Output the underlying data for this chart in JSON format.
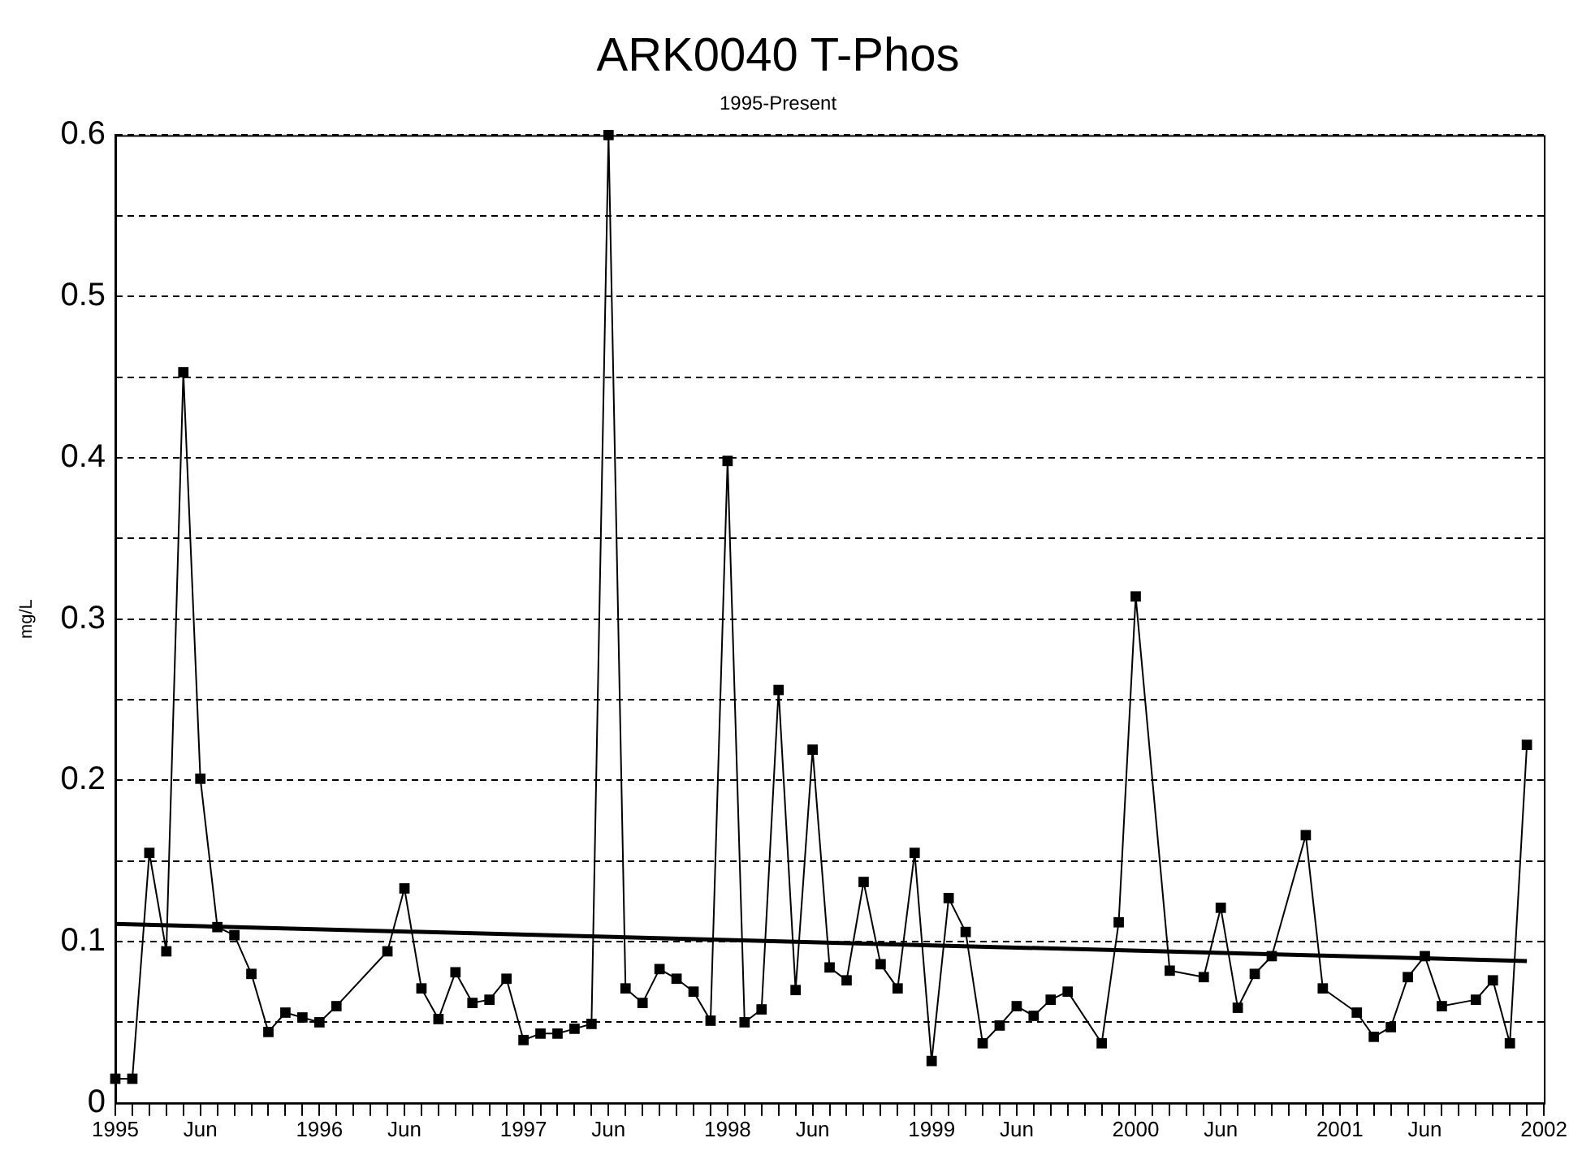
{
  "chart_data": {
    "type": "line",
    "title": "ARK0040 T-Phos",
    "subtitle": "1995-Present",
    "ylabel": "mg/L",
    "xlim": [
      "1995-01",
      "2002-01"
    ],
    "xticks": [
      {
        "value": "1995-01",
        "label": "1995"
      },
      {
        "value": "1995-02",
        "label": null
      },
      {
        "value": "1995-03",
        "label": null
      },
      {
        "value": "1995-04",
        "label": null
      },
      {
        "value": "1995-05",
        "label": null
      },
      {
        "value": "1995-06",
        "label": "Jun"
      },
      {
        "value": "1995-07",
        "label": null
      },
      {
        "value": "1995-08",
        "label": null
      },
      {
        "value": "1995-09",
        "label": null
      },
      {
        "value": "1995-10",
        "label": null
      },
      {
        "value": "1995-11",
        "label": null
      },
      {
        "value": "1995-12",
        "label": null
      },
      {
        "value": "1996-01",
        "label": "1996"
      },
      {
        "value": "1996-02",
        "label": null
      },
      {
        "value": "1996-03",
        "label": null
      },
      {
        "value": "1996-04",
        "label": null
      },
      {
        "value": "1996-05",
        "label": null
      },
      {
        "value": "1996-06",
        "label": "Jun"
      },
      {
        "value": "1996-07",
        "label": null
      },
      {
        "value": "1996-08",
        "label": null
      },
      {
        "value": "1996-09",
        "label": null
      },
      {
        "value": "1996-10",
        "label": null
      },
      {
        "value": "1996-11",
        "label": null
      },
      {
        "value": "1996-12",
        "label": null
      },
      {
        "value": "1997-01",
        "label": "1997"
      },
      {
        "value": "1997-02",
        "label": null
      },
      {
        "value": "1997-03",
        "label": null
      },
      {
        "value": "1997-04",
        "label": null
      },
      {
        "value": "1997-05",
        "label": null
      },
      {
        "value": "1997-06",
        "label": "Jun"
      },
      {
        "value": "1997-07",
        "label": null
      },
      {
        "value": "1997-08",
        "label": null
      },
      {
        "value": "1997-09",
        "label": null
      },
      {
        "value": "1997-10",
        "label": null
      },
      {
        "value": "1997-11",
        "label": null
      },
      {
        "value": "1997-12",
        "label": null
      },
      {
        "value": "1998-01",
        "label": "1998"
      },
      {
        "value": "1998-02",
        "label": null
      },
      {
        "value": "1998-03",
        "label": null
      },
      {
        "value": "1998-04",
        "label": null
      },
      {
        "value": "1998-05",
        "label": null
      },
      {
        "value": "1998-06",
        "label": "Jun"
      },
      {
        "value": "1998-07",
        "label": null
      },
      {
        "value": "1998-08",
        "label": null
      },
      {
        "value": "1998-09",
        "label": null
      },
      {
        "value": "1998-10",
        "label": null
      },
      {
        "value": "1998-11",
        "label": null
      },
      {
        "value": "1998-12",
        "label": null
      },
      {
        "value": "1999-01",
        "label": "1999"
      },
      {
        "value": "1999-02",
        "label": null
      },
      {
        "value": "1999-03",
        "label": null
      },
      {
        "value": "1999-04",
        "label": null
      },
      {
        "value": "1999-05",
        "label": null
      },
      {
        "value": "1999-06",
        "label": "Jun"
      },
      {
        "value": "1999-07",
        "label": null
      },
      {
        "value": "1999-08",
        "label": null
      },
      {
        "value": "1999-09",
        "label": null
      },
      {
        "value": "1999-10",
        "label": null
      },
      {
        "value": "1999-11",
        "label": null
      },
      {
        "value": "1999-12",
        "label": null
      },
      {
        "value": "2000-01",
        "label": "2000"
      },
      {
        "value": "2000-02",
        "label": null
      },
      {
        "value": "2000-03",
        "label": null
      },
      {
        "value": "2000-04",
        "label": null
      },
      {
        "value": "2000-05",
        "label": null
      },
      {
        "value": "2000-06",
        "label": "Jun"
      },
      {
        "value": "2000-07",
        "label": null
      },
      {
        "value": "2000-08",
        "label": null
      },
      {
        "value": "2000-09",
        "label": null
      },
      {
        "value": "2000-10",
        "label": null
      },
      {
        "value": "2000-11",
        "label": null
      },
      {
        "value": "2000-12",
        "label": null
      },
      {
        "value": "2001-01",
        "label": "2001"
      },
      {
        "value": "2001-02",
        "label": null
      },
      {
        "value": "2001-03",
        "label": null
      },
      {
        "value": "2001-04",
        "label": null
      },
      {
        "value": "2001-05",
        "label": null
      },
      {
        "value": "2001-06",
        "label": "Jun"
      },
      {
        "value": "2001-07",
        "label": null
      },
      {
        "value": "2001-08",
        "label": null
      },
      {
        "value": "2001-09",
        "label": null
      },
      {
        "value": "2001-10",
        "label": null
      },
      {
        "value": "2001-11",
        "label": null
      },
      {
        "value": "2001-12",
        "label": null
      },
      {
        "value": "2002-01",
        "label": "2002"
      }
    ],
    "ylim": [
      0,
      0.6
    ],
    "yticks": [
      0,
      {
        "value": 0.05,
        "label": null
      },
      0.1,
      {
        "value": 0.15,
        "label": null
      },
      0.2,
      {
        "value": 0.25,
        "label": null
      },
      0.3,
      {
        "value": 0.35,
        "label": null
      },
      0.4,
      {
        "value": 0.45,
        "label": null
      },
      0.5,
      {
        "value": 0.55,
        "label": null
      },
      0.6
    ],
    "grid": "y",
    "legend": false,
    "marker": "square",
    "line_style": "solid",
    "series": [
      {
        "color": "#000000",
        "x": [
          "1995-01",
          "1995-02",
          "1995-03",
          "1995-04",
          "1995-05",
          "1995-06",
          "1995-07",
          "1995-08",
          "1995-09",
          "1995-10",
          "1995-11",
          "1995-12",
          "1996-01",
          "1996-02",
          "1996-05",
          "1996-06",
          "1996-07",
          "1996-08",
          "1996-09",
          "1996-10",
          "1996-11",
          "1996-12",
          "1997-01",
          "1997-02",
          "1997-03",
          "1997-04",
          "1997-05",
          "1997-06",
          "1997-07",
          "1997-08",
          "1997-09",
          "1997-10",
          "1997-11",
          "1997-12",
          "1998-01",
          "1998-02",
          "1998-03",
          "1998-04",
          "1998-05",
          "1998-06",
          "1998-07",
          "1998-08",
          "1998-09",
          "1998-10",
          "1998-11",
          "1998-12",
          "1999-01",
          "1999-02",
          "1999-03",
          "1999-04",
          "1999-05",
          "1999-06",
          "1999-07",
          "1999-08",
          "1999-09",
          "1999-11",
          "1999-12",
          "2000-01",
          "2000-03",
          "2000-05",
          "2000-06",
          "2000-07",
          "2000-08",
          "2000-09",
          "2000-11",
          "2000-12",
          "2001-02",
          "2001-03",
          "2001-04",
          "2001-05",
          "2001-06",
          "2001-07",
          "2001-09",
          "2001-10",
          "2001-11",
          "2001-12"
        ],
        "values": [
          0.015,
          0.015,
          0.155,
          0.094,
          0.453,
          0.201,
          0.109,
          0.104,
          0.08,
          0.044,
          0.056,
          0.053,
          0.05,
          0.06,
          0.094,
          0.133,
          0.071,
          0.052,
          0.081,
          0.062,
          0.064,
          0.077,
          0.039,
          0.043,
          0.043,
          0.046,
          0.049,
          0.6,
          0.071,
          0.062,
          0.083,
          0.077,
          0.069,
          0.051,
          0.398,
          0.05,
          0.058,
          0.256,
          0.07,
          0.219,
          0.084,
          0.076,
          0.137,
          0.086,
          0.071,
          0.155,
          0.026,
          0.127,
          0.106,
          0.037,
          0.048,
          0.06,
          0.054,
          0.064,
          0.069,
          0.037,
          0.112,
          0.314,
          0.082,
          0.078,
          0.121,
          0.059,
          0.08,
          0.091,
          0.166,
          0.071,
          0.056,
          0.041,
          0.047,
          0.078,
          0.091,
          0.06,
          0.064,
          0.076,
          0.037,
          0.222
        ]
      },
      {
        "type": "line",
        "color": "#000000",
        "marker": "none",
        "x": [
          "1995-01",
          "2001-12"
        ],
        "values": [
          0.111,
          0.088
        ]
      }
    ]
  }
}
